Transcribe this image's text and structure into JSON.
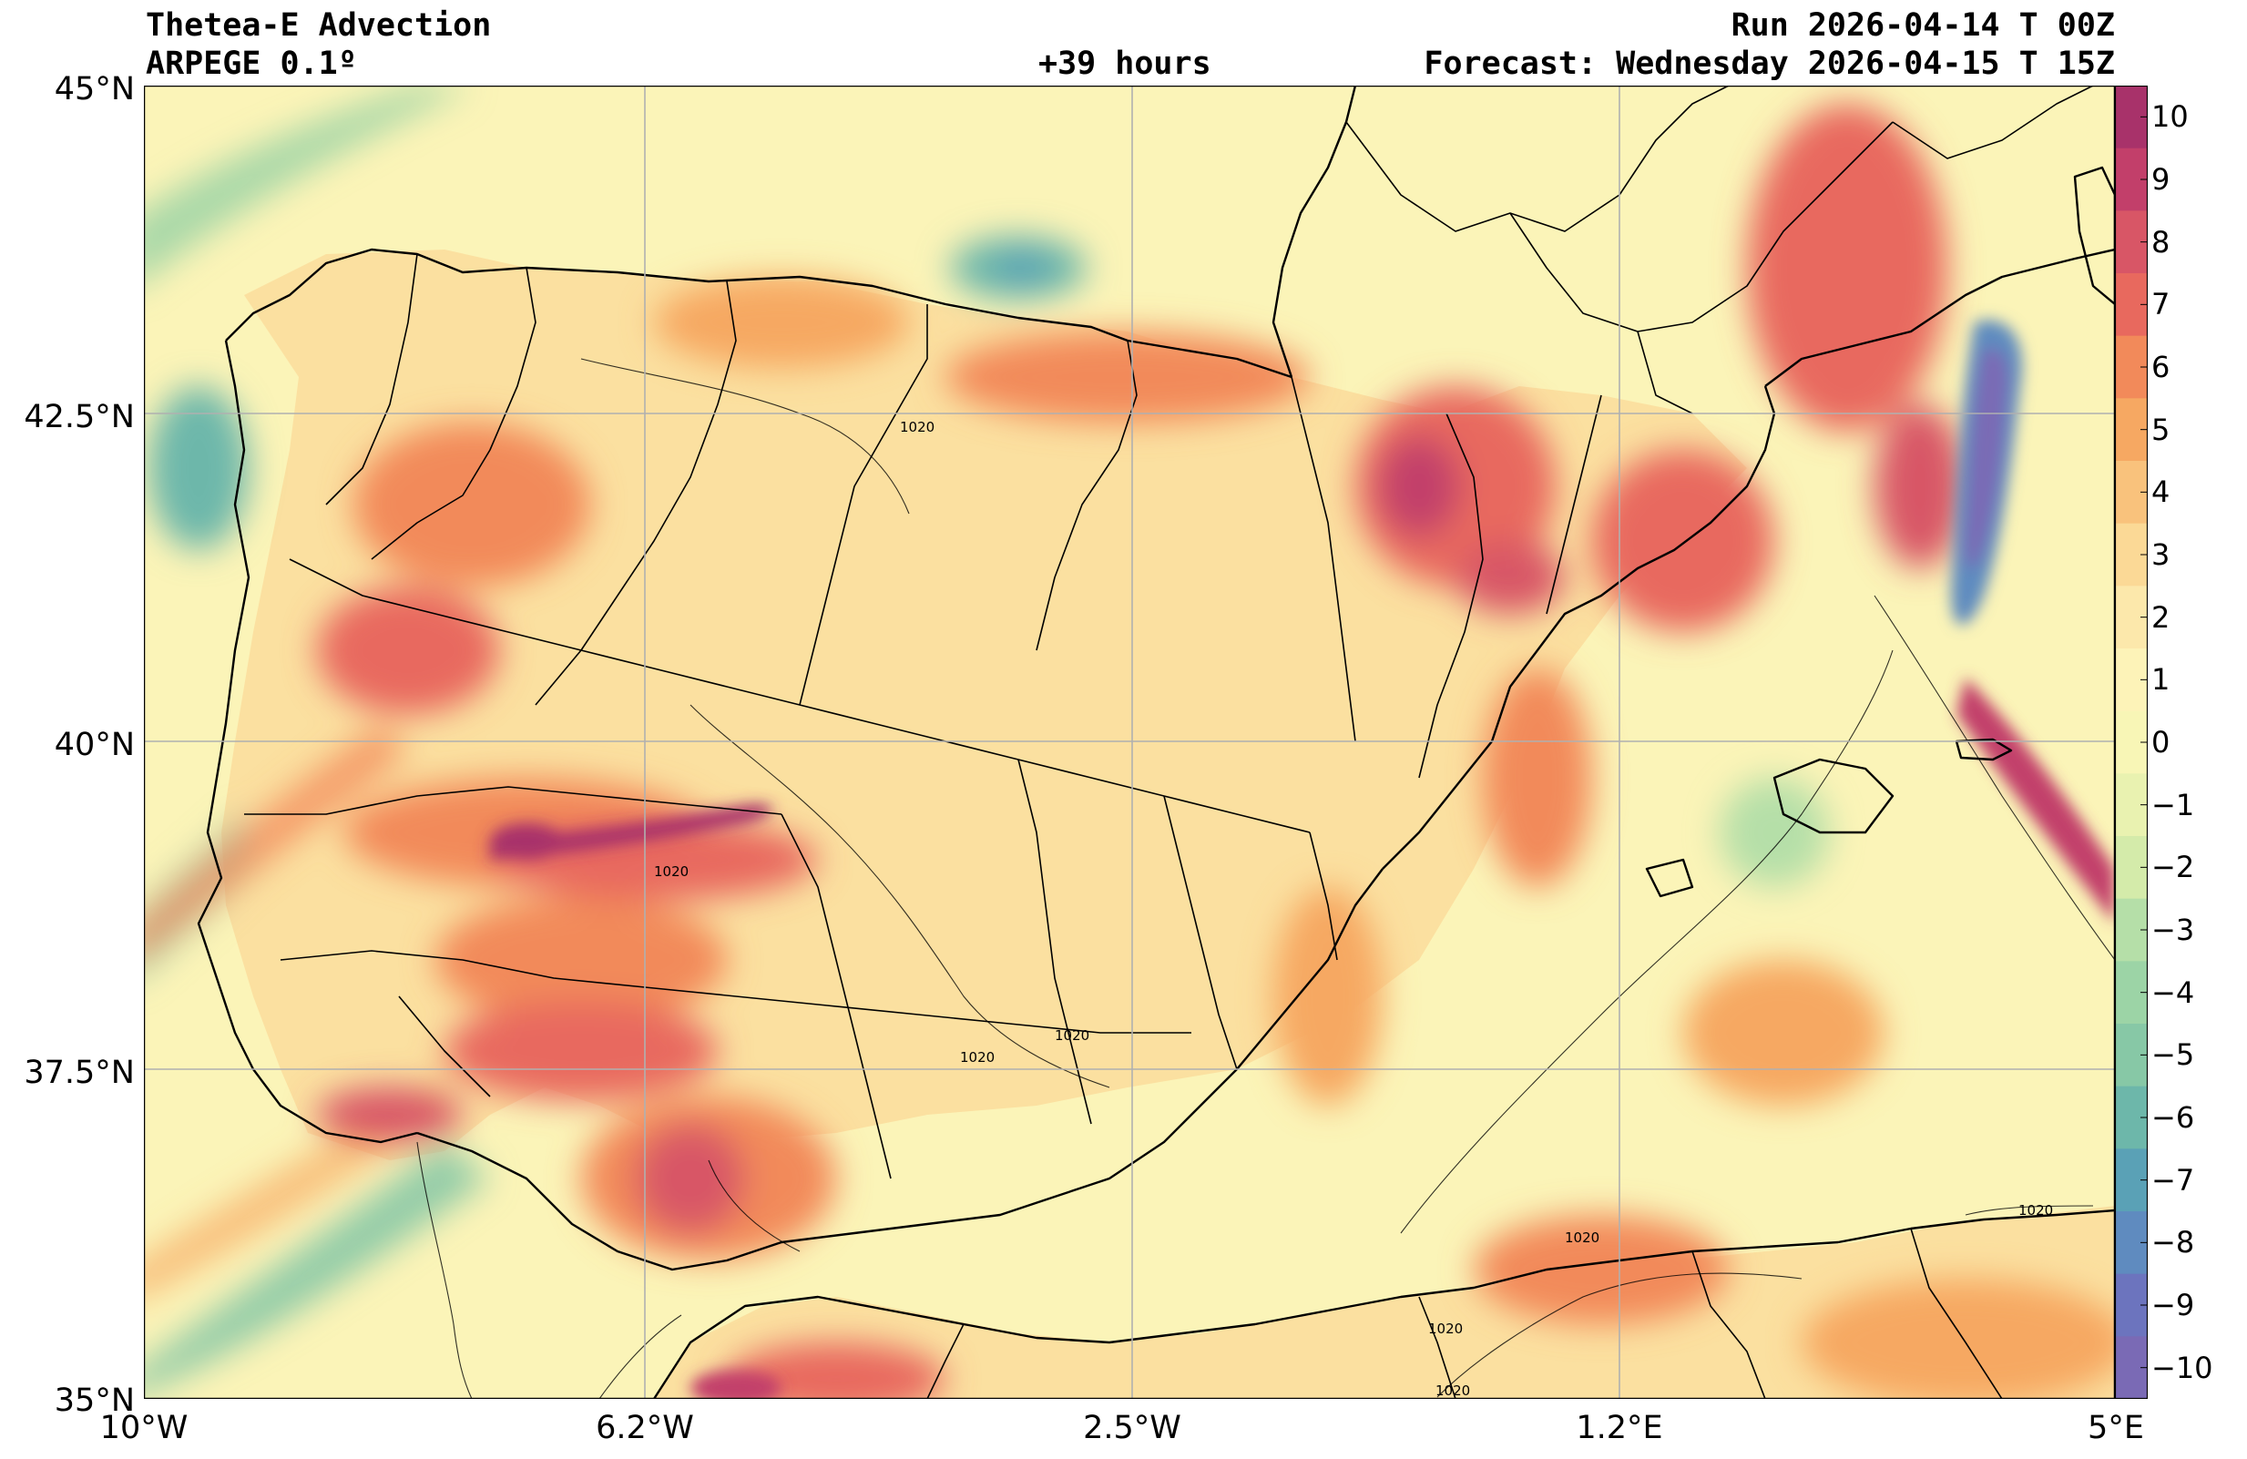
{
  "header": {
    "title": "Thetea-E Advection",
    "model": "ARPEGE 0.1º",
    "lead": "+39 hours",
    "run": "Run 2026-04-14 T 00Z",
    "forecast": "Forecast: Wednesday 2026-04-15 T 15Z"
  },
  "axes": {
    "lat_labels": [
      "45°N",
      "42.5°N",
      "40°N",
      "37.5°N",
      "35°N"
    ],
    "lon_labels": [
      "10°W",
      "6.2°W",
      "2.5°W",
      "1.2°E",
      "5°E"
    ]
  },
  "colorbar": {
    "ticks": [
      "10",
      "9",
      "8",
      "7",
      "6",
      "5",
      "4",
      "3",
      "2",
      "1",
      "0",
      "−1",
      "−2",
      "−3",
      "−4",
      "−5",
      "−6",
      "−7",
      "−8",
      "−9",
      "−10"
    ],
    "colors": [
      "#a8326a",
      "#c23f6a",
      "#d85666",
      "#e8695e",
      "#f28a5a",
      "#f6a862",
      "#f9c27c",
      "#fbd996",
      "#fce8ab",
      "#fdf3b8",
      "#f8f6b6",
      "#e9f2b0",
      "#d4ebaa",
      "#b5dfa8",
      "#9cd4a6",
      "#87c8a6",
      "#6db7aa",
      "#5aa1b6",
      "#5f8bbf",
      "#6c74be",
      "#7a6ab5"
    ]
  },
  "isobar_label": "1020",
  "map_colors": {
    "sea_base": "#fbf4b8",
    "land_base": "#fbe2a2"
  }
}
